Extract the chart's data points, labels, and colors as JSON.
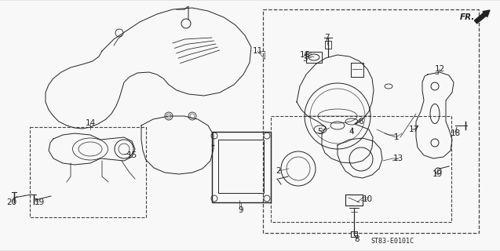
{
  "background_color": "#f5f5f5",
  "diagram_color": "#1a1a1a",
  "part_code": "ST83-E0101C",
  "image_data": ""
}
